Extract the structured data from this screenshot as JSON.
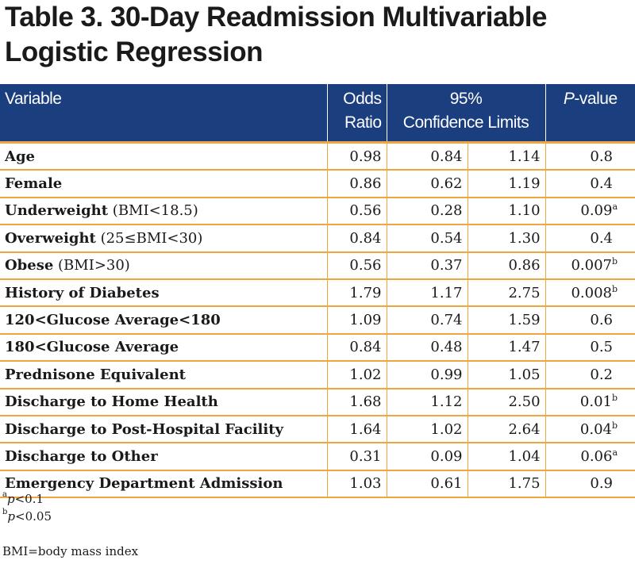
{
  "title": "Table 3. 30-Day Readmission Multivariable Logistic Regression",
  "header": {
    "variable": "Variable",
    "odds_ratio_line1": "Odds",
    "odds_ratio_line2": "Ratio",
    "ci_line1": "95%",
    "ci_line2": "Confidence Limits",
    "p_italic": "P",
    "p_rest": "-value"
  },
  "rows": [
    {
      "label": "Age",
      "extra": "",
      "or": "0.98",
      "lower": "0.84",
      "upper": "1.14",
      "p": "0.8",
      "sup": ""
    },
    {
      "label": "Female",
      "extra": "",
      "or": "0.86",
      "lower": "0.62",
      "upper": "1.19",
      "p": "0.4",
      "sup": ""
    },
    {
      "label": "Underweight",
      "extra": " (BMI<18.5)",
      "or": "0.56",
      "lower": "0.28",
      "upper": "1.10",
      "p": "0.09",
      "sup": "a"
    },
    {
      "label": "Overweight",
      "extra": " (25≤BMI<30)",
      "or": "0.84",
      "lower": "0.54",
      "upper": "1.30",
      "p": "0.4",
      "sup": ""
    },
    {
      "label": "Obese",
      "extra": " (BMI>30)",
      "or": "0.56",
      "lower": "0.37",
      "upper": "0.86",
      "p": "0.007",
      "sup": "b"
    },
    {
      "label": "History of Diabetes",
      "extra": "",
      "or": "1.79",
      "lower": "1.17",
      "upper": "2.75",
      "p": "0.008",
      "sup": "b"
    },
    {
      "label": "120<Glucose Average<180",
      "extra": "",
      "or": "1.09",
      "lower": "0.74",
      "upper": "1.59",
      "p": "0.6",
      "sup": ""
    },
    {
      "label": "180<Glucose Average",
      "extra": "",
      "or": "0.84",
      "lower": "0.48",
      "upper": "1.47",
      "p": "0.5",
      "sup": ""
    },
    {
      "label": "Prednisone Equivalent",
      "extra": "",
      "or": "1.02",
      "lower": "0.99",
      "upper": "1.05",
      "p": "0.2",
      "sup": ""
    },
    {
      "label": "Discharge to Home Health",
      "extra": "",
      "or": "1.68",
      "lower": "1.12",
      "upper": "2.50",
      "p": "0.01",
      "sup": "b"
    },
    {
      "label": "Discharge to Post-Hospital Facility",
      "extra": "",
      "or": "1.64",
      "lower": "1.02",
      "upper": "2.64",
      "p": "0.04",
      "sup": "b"
    },
    {
      "label": "Discharge to Other",
      "extra": "",
      "or": "0.31",
      "lower": "0.09",
      "upper": "1.04",
      "p": "0.06",
      "sup": "a"
    },
    {
      "label": "Emergency Department Admission",
      "extra": "",
      "or": "1.03",
      "lower": "0.61",
      "upper": "1.75",
      "p": "0.9",
      "sup": ""
    }
  ],
  "footnotes": {
    "a_marker": "a",
    "a_italic": "p",
    "a_text": "<0.1",
    "b_marker": "b",
    "b_italic": "p",
    "b_text": "<0.05",
    "abbreviation": "BMI=body mass index"
  },
  "colors": {
    "header_bg": "#1b3e7f",
    "rule": "#f0a53f"
  }
}
